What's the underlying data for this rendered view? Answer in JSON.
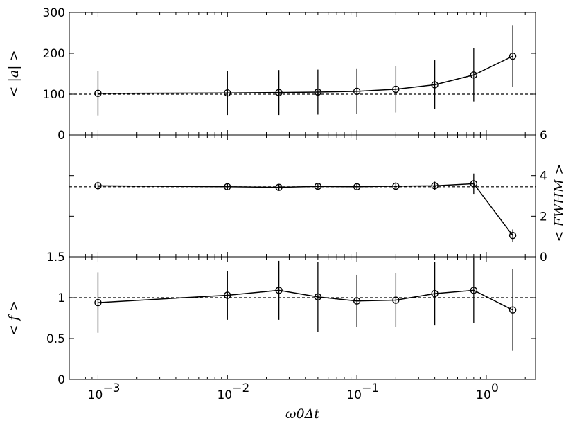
{
  "chart_data": [
    {
      "type": "line",
      "panel": "top",
      "ylabel": "< |a| >",
      "yticks": [
        0,
        100,
        200,
        300
      ],
      "ytick_labels": [
        "0",
        "100",
        "200",
        "300"
      ],
      "ylim": [
        0,
        300
      ],
      "reference_line": 100,
      "x": [
        0.001,
        0.01,
        0.025,
        0.05,
        0.1,
        0.2,
        0.4,
        0.8,
        1.6
      ],
      "y": [
        102,
        103,
        104,
        105,
        107,
        112,
        123,
        147,
        193
      ],
      "yerr": [
        54,
        54,
        55,
        55,
        56,
        57,
        60,
        65,
        76
      ]
    },
    {
      "type": "line",
      "panel": "middle",
      "ylabel": "< FWHM >",
      "ylabel_side": "right",
      "yticks": [
        0,
        2,
        4,
        6
      ],
      "ytick_labels": [
        "0",
        "2",
        "4",
        "6"
      ],
      "ylim": [
        0,
        6
      ],
      "reference_line": 3.45,
      "x": [
        0.001,
        0.01,
        0.025,
        0.05,
        0.1,
        0.2,
        0.4,
        0.8,
        1.6
      ],
      "y": [
        3.5,
        3.45,
        3.42,
        3.47,
        3.45,
        3.48,
        3.5,
        3.6,
        1.05
      ],
      "yerr": [
        0.2,
        0.15,
        0.15,
        0.15,
        0.15,
        0.2,
        0.2,
        0.5,
        0.3
      ]
    },
    {
      "type": "line",
      "panel": "bottom",
      "ylabel": "< f >",
      "xlabel": "ω0Δt",
      "xscale": "log",
      "xlim": [
        0.0006,
        2.4
      ],
      "xticks": [
        0.001,
        0.01,
        0.1,
        1
      ],
      "xtick_labels": [
        "10",
        "10",
        "10",
        "10"
      ],
      "xtick_exponents": [
        "−3",
        "−2",
        "−1",
        "0"
      ],
      "yticks": [
        0,
        0.5,
        1,
        1.5
      ],
      "ytick_labels": [
        "0",
        "0.5",
        "1",
        "1.5"
      ],
      "ylim": [
        0,
        1.5
      ],
      "reference_line": 1.0,
      "x": [
        0.001,
        0.01,
        0.025,
        0.05,
        0.1,
        0.2,
        0.4,
        0.8,
        1.6
      ],
      "y": [
        0.94,
        1.03,
        1.09,
        1.01,
        0.96,
        0.97,
        1.05,
        1.09,
        0.85
      ],
      "yerr": [
        0.37,
        0.3,
        0.36,
        0.43,
        0.32,
        0.33,
        0.39,
        0.4,
        0.5
      ]
    }
  ]
}
